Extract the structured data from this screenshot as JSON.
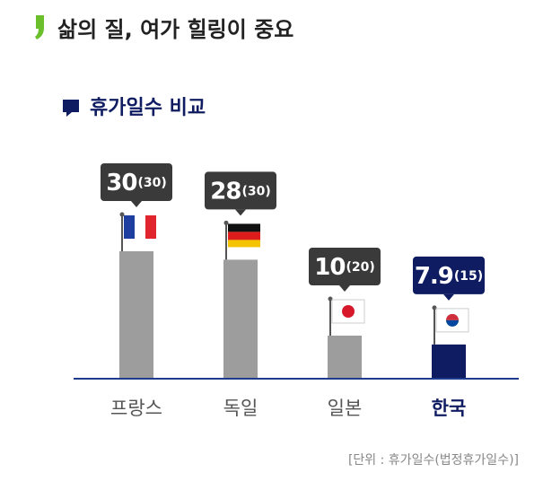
{
  "chart_data": {
    "type": "bar",
    "title": "삶의 질, 여가 힐링이 중요",
    "subtitle": "휴가일수 비교",
    "categories": [
      "프랑스",
      "독일",
      "일본",
      "한국"
    ],
    "values": [
      30,
      28,
      10,
      7.9
    ],
    "legal_day_labels": [
      "(30)",
      "(30)",
      "(20)",
      "(15)"
    ],
    "colors": [
      "#9d9d9d",
      "#9d9d9d",
      "#9d9d9d",
      "#0f1c62"
    ],
    "label_colors": [
      "#555555",
      "#555555",
      "#555555",
      "#0f1c62"
    ],
    "callout_colors": [
      "#3a3a3a",
      "#3a3a3a",
      "#3a3a3a",
      "#0f1c62"
    ],
    "note": "[단위 : 휴가일수(법정휴가일수)]"
  }
}
